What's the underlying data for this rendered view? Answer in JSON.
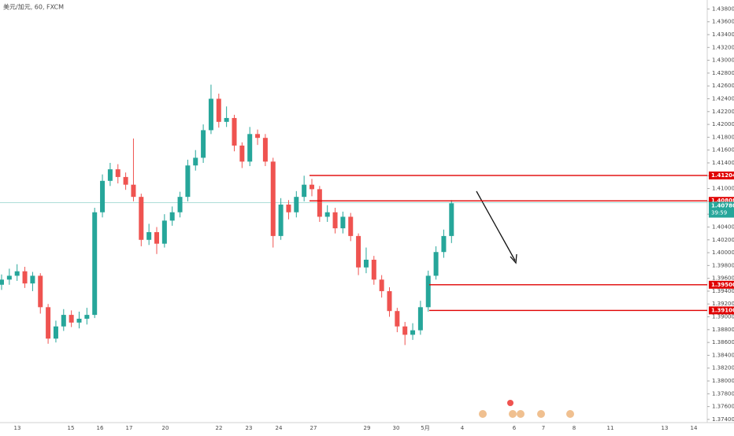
{
  "chart_data": {
    "type": "candlestick",
    "title": "美元/加元, 60, FXCM",
    "ylim": [
      1.3735,
      1.4394
    ],
    "yticks": [
      {
        "value": 1.438,
        "label": "1.43800"
      },
      {
        "value": 1.436,
        "label": "1.43600"
      },
      {
        "value": 1.434,
        "label": "1.43400"
      },
      {
        "value": 1.432,
        "label": "1.43200"
      },
      {
        "value": 1.43,
        "label": "1.43000"
      },
      {
        "value": 1.428,
        "label": "1.42800"
      },
      {
        "value": 1.426,
        "label": "1.42600"
      },
      {
        "value": 1.424,
        "label": "1.42400"
      },
      {
        "value": 1.422,
        "label": "1.42200"
      },
      {
        "value": 1.42,
        "label": "1.42000"
      },
      {
        "value": 1.418,
        "label": "1.41800"
      },
      {
        "value": 1.416,
        "label": "1.41600"
      },
      {
        "value": 1.414,
        "label": "1.41400"
      },
      {
        "value": 1.412,
        "label": "1.41200"
      },
      {
        "value": 1.41,
        "label": "1.41000"
      },
      {
        "value": 1.408,
        "label": "1.40800"
      },
      {
        "value": 1.406,
        "label": "1.40600"
      },
      {
        "value": 1.404,
        "label": "1.40400"
      },
      {
        "value": 1.402,
        "label": "1.40200"
      },
      {
        "value": 1.4,
        "label": "1.40000"
      },
      {
        "value": 1.398,
        "label": "1.39800"
      },
      {
        "value": 1.396,
        "label": "1.39600"
      },
      {
        "value": 1.394,
        "label": "1.39400"
      },
      {
        "value": 1.392,
        "label": "1.39200"
      },
      {
        "value": 1.39,
        "label": "1.39000"
      },
      {
        "value": 1.388,
        "label": "1.38800"
      },
      {
        "value": 1.386,
        "label": "1.38600"
      },
      {
        "value": 1.384,
        "label": "1.38400"
      },
      {
        "value": 1.382,
        "label": "1.38200"
      },
      {
        "value": 1.38,
        "label": "1.38000"
      },
      {
        "value": 1.378,
        "label": "1.37800"
      },
      {
        "value": 1.376,
        "label": "1.37600"
      },
      {
        "value": 1.374,
        "label": "1.37400"
      }
    ],
    "x_labels": [
      "13",
      "15",
      "16",
      "17",
      "20",
      "22",
      "23",
      "24",
      "27",
      "29",
      "30",
      "5月",
      "4",
      "6",
      "7",
      "8",
      "11",
      "13",
      "14"
    ],
    "up_color": "#26a69a",
    "down_color": "#ef5350",
    "level_color": "#e00000",
    "open": [
      1.395,
      1.3958,
      1.3964,
      1.3971,
      1.3952,
      1.3964,
      1.3915,
      1.3866,
      1.3885,
      1.3903,
      1.3891,
      1.3897,
      1.3903,
      1.4063,
      1.4112,
      1.413,
      1.4118,
      1.4106,
      1.4087,
      1.402,
      1.4032,
      1.4014,
      1.405,
      1.4063,
      1.4087,
      1.4136,
      1.4148,
      1.4191,
      1.424,
      1.4204,
      1.421,
      1.4167,
      1.4142,
      1.4185,
      1.4179,
      1.4142,
      1.4026,
      1.4075,
      1.4063,
      1.4087,
      1.4106,
      1.4099,
      1.4056,
      1.4063,
      1.4038,
      1.4056,
      1.4026,
      1.3977,
      1.3989,
      1.3958,
      1.394,
      1.3909,
      1.3885,
      1.3872,
      1.3879,
      1.3915,
      1.3964,
      1.4001,
      1.4026
    ],
    "high": [
      1.3966,
      1.3975,
      1.3982,
      1.3978,
      1.397,
      1.3968,
      1.392,
      1.3894,
      1.3912,
      1.391,
      1.3908,
      1.3914,
      1.407,
      1.4122,
      1.414,
      1.4138,
      1.4125,
      1.4178,
      1.4092,
      1.4045,
      1.404,
      1.406,
      1.4072,
      1.4095,
      1.4145,
      1.416,
      1.42,
      1.4262,
      1.4248,
      1.4228,
      1.4215,
      1.4172,
      1.4196,
      1.4192,
      1.4185,
      1.4148,
      1.4085,
      1.4082,
      1.4096,
      1.412,
      1.4115,
      1.4104,
      1.4074,
      1.407,
      1.4064,
      1.4062,
      1.403,
      1.4008,
      1.3995,
      1.3965,
      1.3946,
      1.3914,
      1.3892,
      1.389,
      1.3925,
      1.3972,
      1.401,
      1.4036,
      1.4082
    ],
    "low": [
      1.3942,
      1.395,
      1.3956,
      1.3945,
      1.394,
      1.3905,
      1.3858,
      1.386,
      1.3878,
      1.3884,
      1.3882,
      1.3888,
      1.3898,
      1.4055,
      1.4104,
      1.4108,
      1.4098,
      1.408,
      1.401,
      1.4012,
      1.3998,
      1.4008,
      1.4042,
      1.4055,
      1.408,
      1.4128,
      1.414,
      1.4185,
      1.4195,
      1.4196,
      1.4158,
      1.4132,
      1.4135,
      1.4168,
      1.4135,
      1.4008,
      1.402,
      1.4052,
      1.4055,
      1.408,
      1.4088,
      1.4048,
      1.4048,
      1.403,
      1.403,
      1.4018,
      1.3965,
      1.3968,
      1.395,
      1.393,
      1.39,
      1.3876,
      1.3856,
      1.3864,
      1.3872,
      1.3908,
      1.3958,
      1.3992,
      1.4015
    ],
    "close": [
      1.3958,
      1.3964,
      1.3971,
      1.3952,
      1.3964,
      1.3915,
      1.3866,
      1.3885,
      1.3903,
      1.3891,
      1.3897,
      1.3903,
      1.4063,
      1.4112,
      1.413,
      1.4118,
      1.4106,
      1.4087,
      1.402,
      1.4032,
      1.4014,
      1.405,
      1.4063,
      1.4087,
      1.4136,
      1.4148,
      1.4191,
      1.424,
      1.4204,
      1.421,
      1.4167,
      1.4142,
      1.4185,
      1.4179,
      1.4142,
      1.4026,
      1.4075,
      1.4063,
      1.4087,
      1.4106,
      1.4099,
      1.4056,
      1.4063,
      1.4038,
      1.4056,
      1.4026,
      1.3977,
      1.3989,
      1.3958,
      1.394,
      1.3909,
      1.3885,
      1.3872,
      1.3879,
      1.3915,
      1.3964,
      1.4001,
      1.4026,
      1.4077
    ],
    "levels": [
      {
        "value": 1.41204,
        "label": "1.41204"
      },
      {
        "value": 1.40808,
        "label": "1.40808"
      },
      {
        "value": 1.395,
        "label": "1.39500"
      },
      {
        "value": 1.391,
        "label": "1.39100"
      }
    ],
    "current_price": {
      "value": 1.4078,
      "label": "1.40780"
    },
    "countdown": "39:59"
  }
}
